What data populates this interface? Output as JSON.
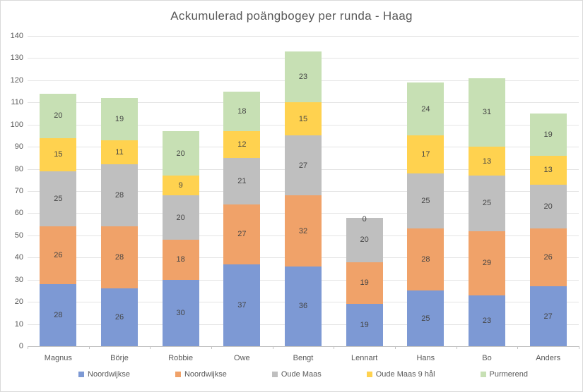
{
  "chart_data": {
    "type": "bar",
    "stacked": true,
    "title": "Ackumulerad poängbogey per runda - Haag",
    "categories": [
      "Magnus",
      "Börje",
      "Robbie",
      "Owe",
      "Bengt",
      "Lennart",
      "Hans",
      "Bo",
      "Anders"
    ],
    "series": [
      {
        "name": "Noordwijkse",
        "color": "#7D99D4",
        "values": [
          28,
          26,
          30,
          37,
          36,
          19,
          25,
          23,
          27
        ]
      },
      {
        "name": "Noordwijkse",
        "color": "#F0A269",
        "values": [
          26,
          28,
          18,
          27,
          32,
          19,
          28,
          29,
          26
        ]
      },
      {
        "name": "Oude Maas",
        "color": "#BFBFBF",
        "values": [
          25,
          28,
          20,
          21,
          27,
          20,
          25,
          25,
          20
        ]
      },
      {
        "name": "Oude Maas 9 hål",
        "color": "#FFD24F",
        "values": [
          15,
          11,
          9,
          12,
          15,
          0,
          17,
          13,
          13
        ]
      },
      {
        "name": "Purmerend",
        "color": "#C7E0B4",
        "values": [
          20,
          19,
          20,
          18,
          23,
          0,
          24,
          31,
          19
        ]
      }
    ],
    "totals": [
      114,
      112,
      97,
      115,
      133,
      58,
      119,
      121,
      105
    ],
    "ylim": [
      0,
      140
    ],
    "ytick_step": 10,
    "grid": true,
    "legend_position": "bottom",
    "colors": {
      "title_text": "#595959",
      "axis_text": "#595959",
      "segment_label_text": "#454545",
      "gridline": "#e4e4e4",
      "axis_line": "#c3c3c3",
      "frame_border": "#d9d9d9",
      "background": "#ffffff"
    }
  }
}
